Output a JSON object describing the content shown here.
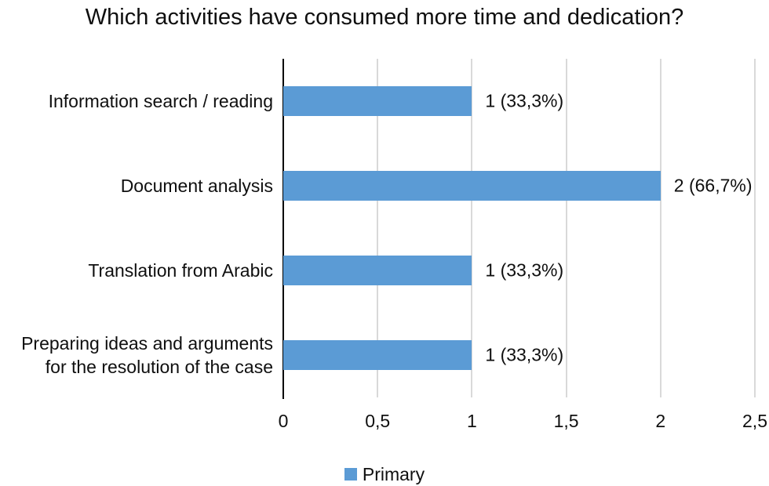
{
  "chart_data": {
    "type": "bar",
    "orientation": "horizontal",
    "title": "Which activities have consumed more time and dedication?",
    "categories": [
      "Information search / reading",
      "Document analysis",
      "Translation from Arabic",
      "Preparing ideas and arguments\nfor the resolution of the case"
    ],
    "values": [
      1,
      2,
      1,
      1
    ],
    "value_labels": [
      "1 (33,3%)",
      "2 (66,7%)",
      "1 (33,3%)",
      "1 (33,3%)"
    ],
    "x_ticks": [
      {
        "label": "0",
        "value": 0
      },
      {
        "label": "0,5",
        "value": 0.5
      },
      {
        "label": "1",
        "value": 1
      },
      {
        "label": "1,5",
        "value": 1.5
      },
      {
        "label": "2",
        "value": 2
      },
      {
        "label": "2,5",
        "value": 2.5
      }
    ],
    "xlim": [
      0,
      2.5
    ],
    "grid": true,
    "legend_position": "bottom",
    "legend": [
      {
        "label": "Primary",
        "color": "#5B9BD5"
      }
    ],
    "colors": {
      "bar": "#5B9BD5",
      "gridline": "#D9D9D9",
      "axis": "#000000",
      "text": "#0F0F0F"
    }
  }
}
